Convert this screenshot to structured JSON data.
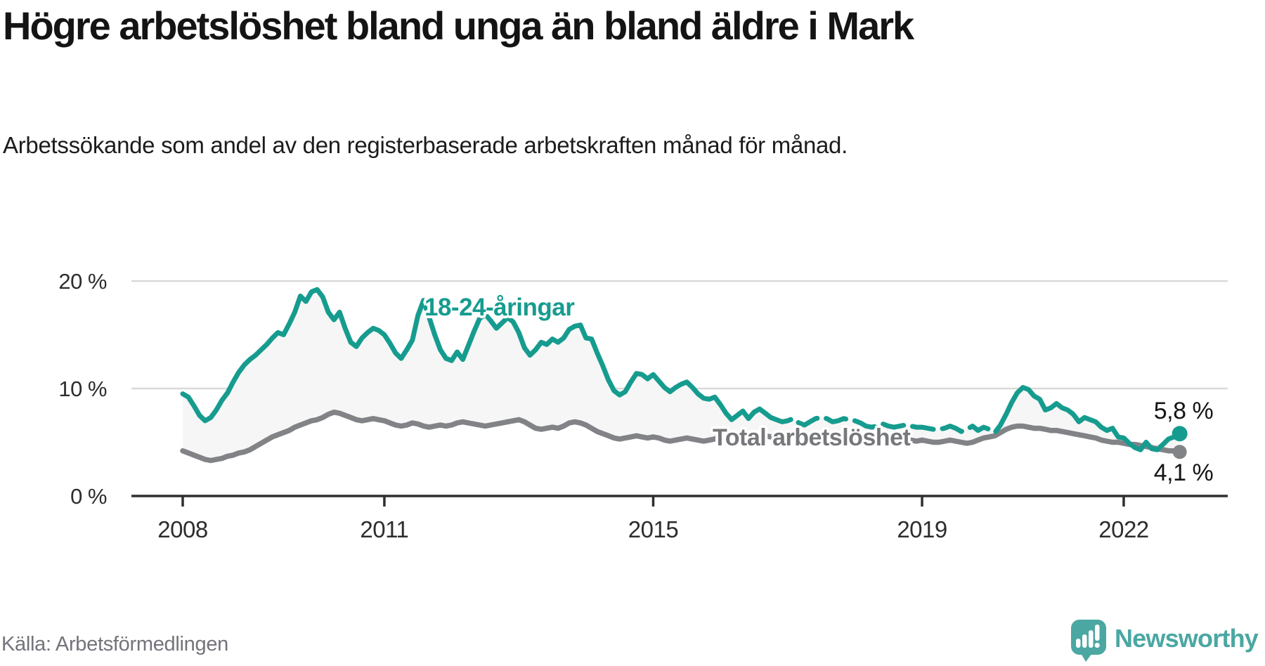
{
  "header": {
    "title": "Högre arbetslöshet bland unga än bland äldre i Mark",
    "subtitle": "Arbetssökande som andel av den registerbaserade arbetskraften månad för månad."
  },
  "footer": {
    "source": "Källa: Arbetsförmedlingen",
    "brand": "Newsworthy"
  },
  "colors": {
    "youth_line": "#169C8F",
    "total_line": "#828387",
    "total_label": "#77787C",
    "fill_between": "#f6f6f6",
    "gridline": "#d9d9d9",
    "axis": "#2f2f2f",
    "axis_text": "#2d2d2d",
    "end_label_text": "#151515",
    "brand_teal": "#4BA7A2",
    "source_gray": "#73737b"
  },
  "chart_data": {
    "type": "line",
    "title": "Högre arbetslöshet bland unga än bland äldre i Mark",
    "xlabel": "",
    "ylabel": "Arbetssökande som andel av den registerbaserade arbetskraften",
    "x_start": "2008-01",
    "x_end": "2022-11",
    "x_frequency": "monthly",
    "x_tick_years": [
      2008,
      2011,
      2015,
      2019,
      2022
    ],
    "ylim": [
      0,
      21.5
    ],
    "y_ticks": [
      {
        "value": 0,
        "label": "0 %"
      },
      {
        "value": 10,
        "label": "10 %"
      },
      {
        "value": 20,
        "label": "20 %"
      }
    ],
    "grid": "horizontal-only",
    "legend_position": "inline-labels",
    "fill_between_series": true,
    "series": [
      {
        "name": "18-24-åringar",
        "color": "#169C8F",
        "end_label": "5,8 %",
        "end_value": 5.8,
        "dashed_from_index": 105,
        "dashed_to_index": 147,
        "values": [
          9.5,
          9.2,
          8.4,
          7.5,
          7.0,
          7.3,
          8.0,
          8.9,
          9.6,
          10.6,
          11.5,
          12.2,
          12.7,
          13.1,
          13.6,
          14.1,
          14.7,
          15.2,
          15.0,
          16.0,
          17.1,
          18.6,
          18.1,
          19.0,
          19.2,
          18.5,
          17.1,
          16.4,
          17.1,
          15.6,
          14.3,
          13.9,
          14.7,
          15.2,
          15.6,
          15.4,
          15.0,
          14.2,
          13.3,
          12.8,
          13.6,
          14.5,
          16.8,
          18.2,
          16.6,
          15.0,
          13.6,
          12.8,
          12.6,
          13.4,
          12.7,
          14.0,
          15.3,
          16.5,
          16.9,
          16.3,
          15.6,
          16.1,
          16.6,
          16.2,
          15.2,
          13.8,
          13.1,
          13.6,
          14.3,
          14.1,
          14.6,
          14.3,
          14.7,
          15.5,
          15.8,
          15.9,
          14.7,
          14.6,
          13.3,
          12.1,
          10.8,
          9.8,
          9.4,
          9.7,
          10.6,
          11.4,
          11.3,
          10.9,
          11.3,
          10.7,
          10.1,
          9.7,
          10.1,
          10.4,
          10.6,
          10.1,
          9.5,
          9.1,
          9.0,
          9.2,
          8.5,
          7.7,
          7.1,
          7.5,
          7.9,
          7.2,
          7.8,
          8.1,
          7.7,
          7.3,
          7.1,
          6.9,
          7.0,
          7.2,
          6.8,
          6.6,
          6.9,
          7.2,
          7.3,
          7.2,
          6.9,
          7.0,
          7.2,
          7.1,
          7.0,
          6.8,
          6.5,
          6.4,
          6.5,
          6.7,
          6.5,
          6.4,
          6.5,
          6.6,
          6.5,
          6.4,
          6.4,
          6.3,
          6.2,
          6.2,
          6.3,
          6.5,
          6.3,
          6.0,
          6.2,
          6.5,
          6.1,
          6.4,
          6.2,
          5.9,
          6.6,
          7.6,
          8.7,
          9.6,
          10.1,
          9.9,
          9.3,
          9.0,
          8.0,
          8.2,
          8.6,
          8.2,
          8.0,
          7.6,
          6.9,
          7.3,
          7.1,
          6.9,
          6.4,
          6.1,
          6.3,
          5.5,
          5.4,
          4.9,
          4.5,
          4.3,
          5.0,
          4.4,
          4.3,
          4.8,
          5.3,
          5.5,
          5.8
        ]
      },
      {
        "name": "Total arbetslöshet",
        "color": "#828387",
        "end_label": "4,1 %",
        "end_value": 4.1,
        "values": [
          4.2,
          4.0,
          3.8,
          3.6,
          3.4,
          3.3,
          3.4,
          3.5,
          3.7,
          3.8,
          4.0,
          4.1,
          4.3,
          4.6,
          4.9,
          5.2,
          5.5,
          5.7,
          5.9,
          6.1,
          6.4,
          6.6,
          6.8,
          7.0,
          7.1,
          7.3,
          7.6,
          7.8,
          7.7,
          7.5,
          7.3,
          7.1,
          7.0,
          7.1,
          7.2,
          7.1,
          7.0,
          6.8,
          6.6,
          6.5,
          6.6,
          6.8,
          6.7,
          6.5,
          6.4,
          6.5,
          6.6,
          6.5,
          6.6,
          6.8,
          6.9,
          6.8,
          6.7,
          6.6,
          6.5,
          6.6,
          6.7,
          6.8,
          6.9,
          7.0,
          7.1,
          6.9,
          6.6,
          6.3,
          6.2,
          6.3,
          6.4,
          6.3,
          6.5,
          6.8,
          6.9,
          6.8,
          6.6,
          6.3,
          6.0,
          5.8,
          5.6,
          5.4,
          5.3,
          5.4,
          5.5,
          5.6,
          5.5,
          5.4,
          5.5,
          5.4,
          5.2,
          5.1,
          5.2,
          5.3,
          5.4,
          5.3,
          5.2,
          5.1,
          5.2,
          5.3,
          5.6,
          5.8,
          5.7,
          5.5,
          5.6,
          5.5,
          5.6,
          5.7,
          5.6,
          5.5,
          5.6,
          5.5,
          5.6,
          5.7,
          5.6,
          5.5,
          5.6,
          5.7,
          5.8,
          5.7,
          5.6,
          5.5,
          5.6,
          5.5,
          5.4,
          5.3,
          5.2,
          5.1,
          5.2,
          5.3,
          5.2,
          5.1,
          5.0,
          5.1,
          5.2,
          5.1,
          5.2,
          5.1,
          5.0,
          5.0,
          5.1,
          5.2,
          5.1,
          5.0,
          4.9,
          5.0,
          5.2,
          5.4,
          5.5,
          5.6,
          5.9,
          6.2,
          6.4,
          6.5,
          6.5,
          6.4,
          6.3,
          6.3,
          6.2,
          6.1,
          6.1,
          6.0,
          5.9,
          5.8,
          5.7,
          5.6,
          5.5,
          5.4,
          5.2,
          5.1,
          5.0,
          5.0,
          4.9,
          4.8,
          4.8,
          4.7,
          4.6,
          4.5,
          4.4,
          4.3,
          4.2,
          4.2,
          4.1
        ]
      }
    ]
  }
}
